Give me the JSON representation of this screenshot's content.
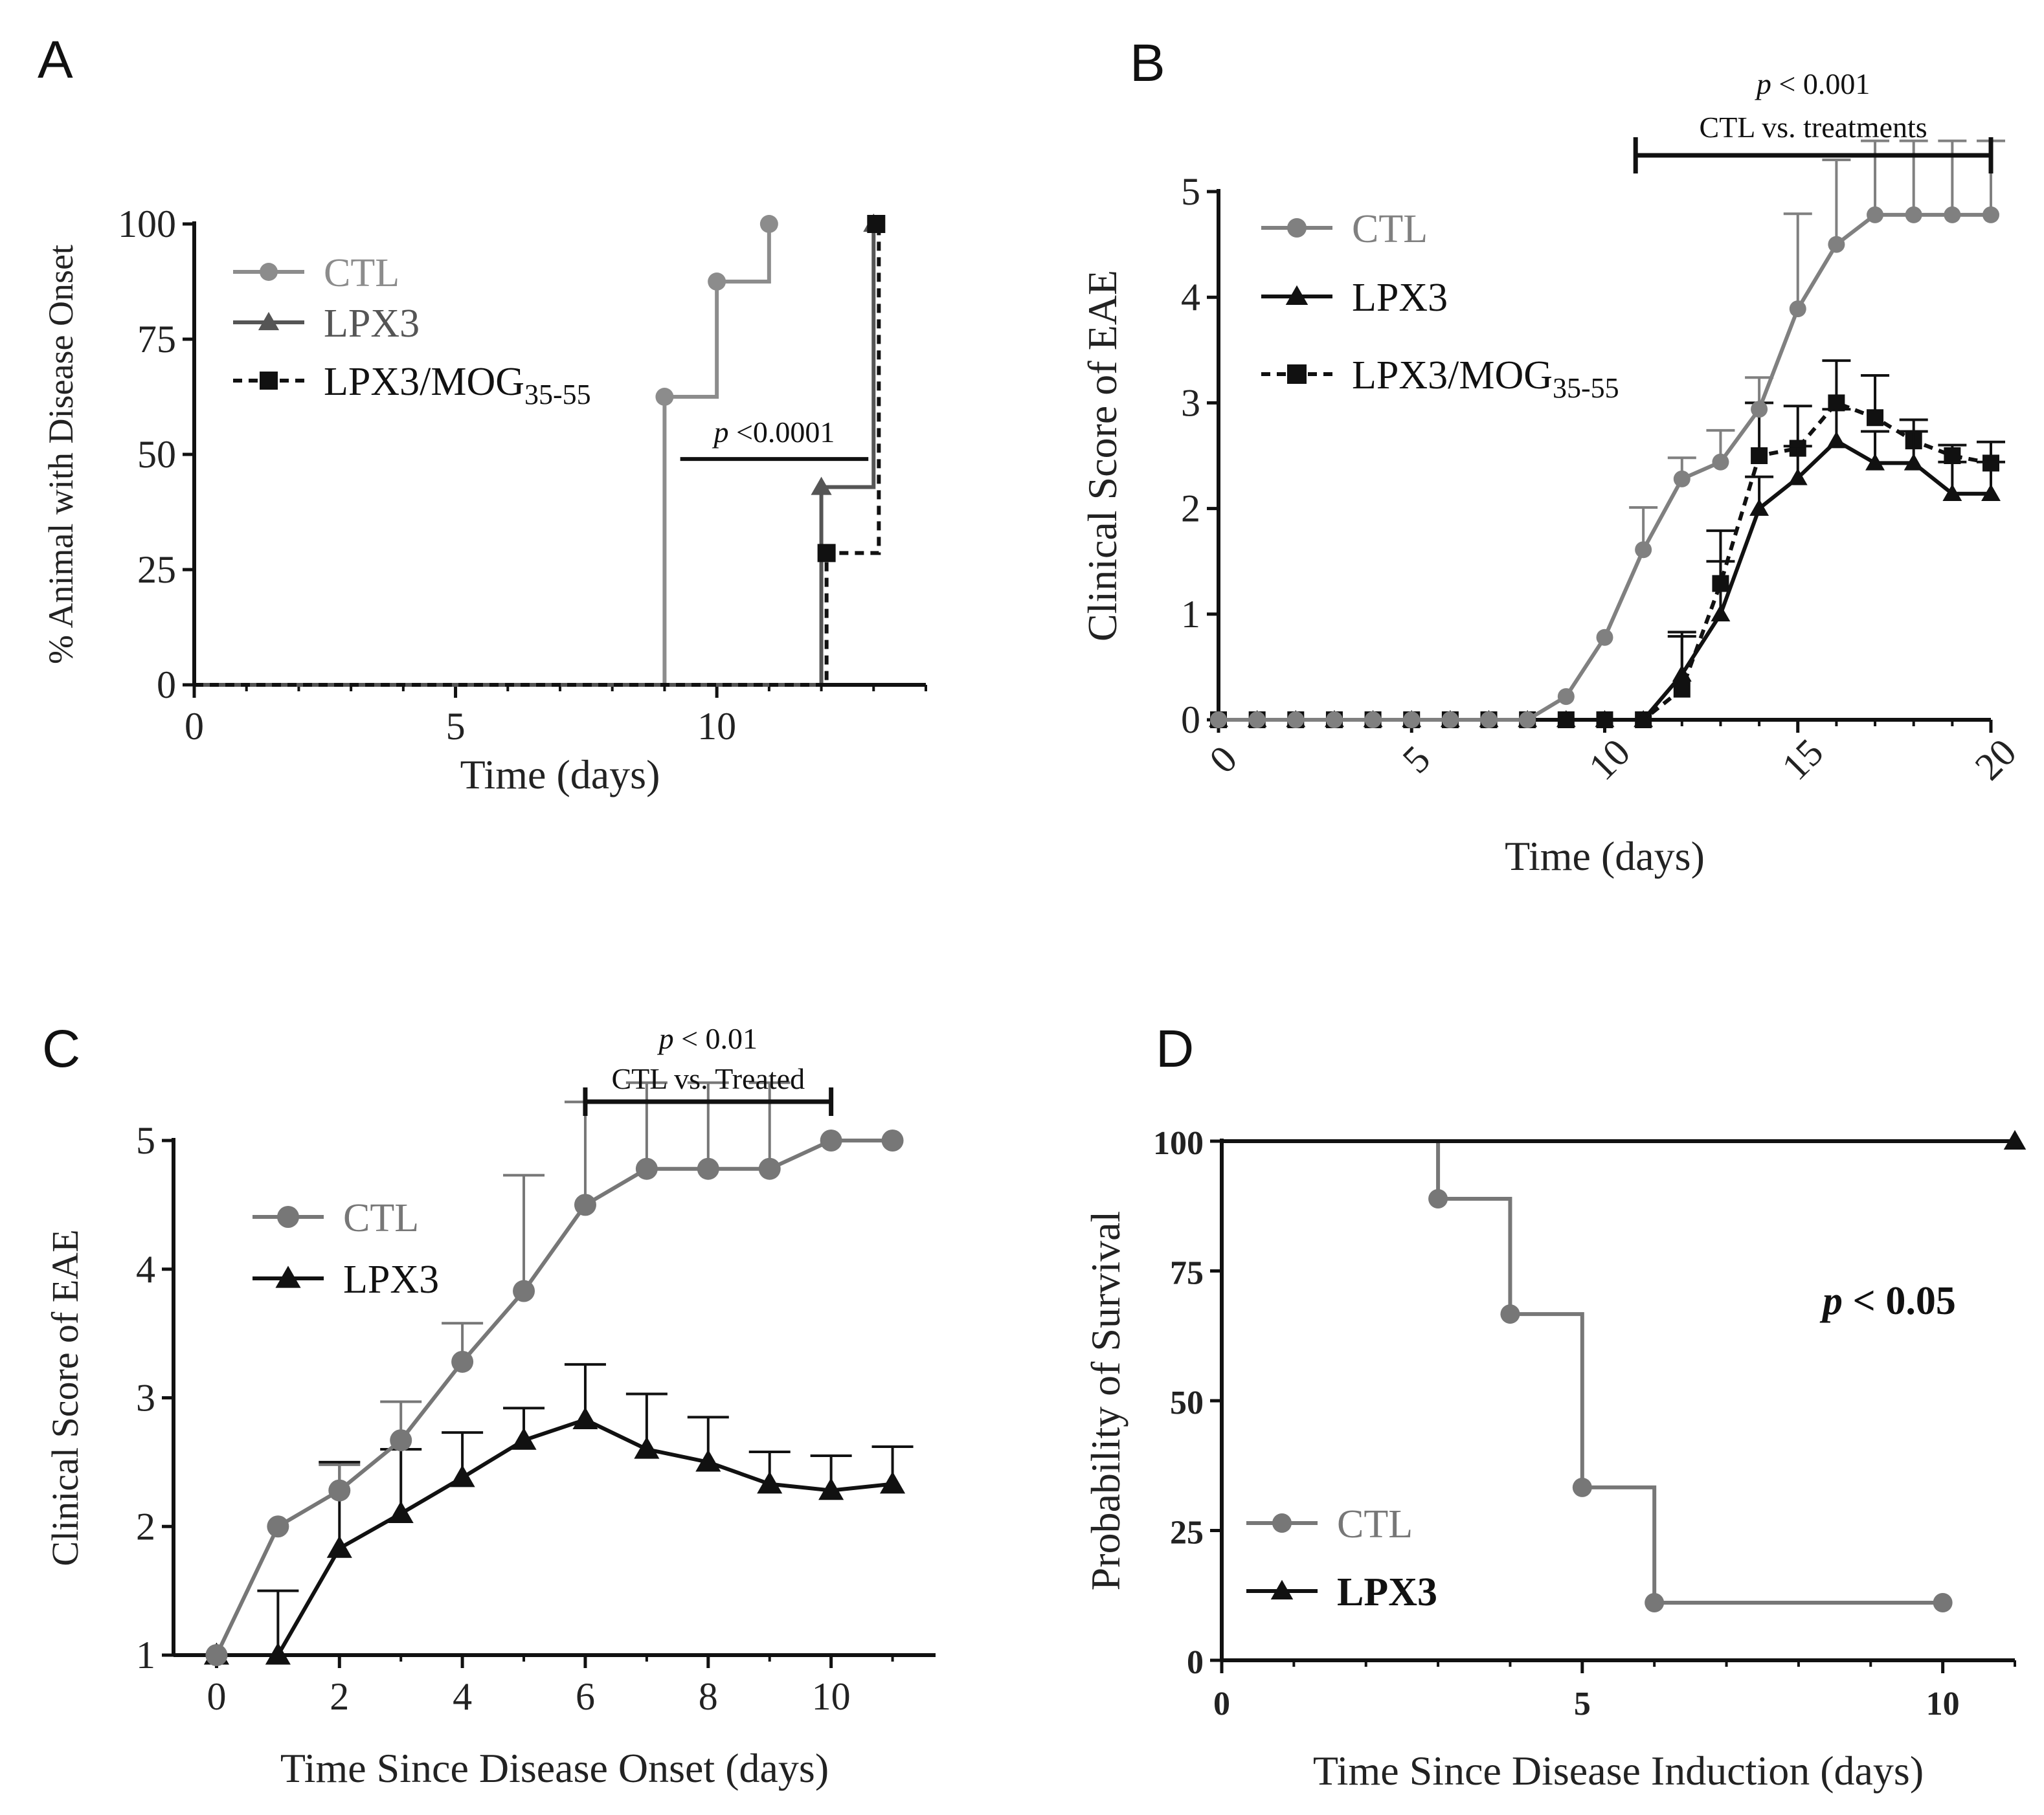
{
  "colors": {
    "ctl": "#7f7f7f",
    "lpx3_a": "#555555",
    "treated": "#111111"
  },
  "chart_data": [
    {
      "panel": "A",
      "type": "line",
      "step": true,
      "xlabel": "Time (days)",
      "ylabel": "% Animal with Disease Onset",
      "xlim": [
        0,
        14
      ],
      "ylim": [
        0,
        100
      ],
      "xticks": [
        "0",
        "5",
        "10"
      ],
      "yticks": [
        "0",
        "25",
        "50",
        "75",
        "100"
      ],
      "series": [
        {
          "name": "CTL",
          "color": "#8c8c8c",
          "marker": "circle",
          "dash": false,
          "points": [
            [
              0,
              0
            ],
            [
              9,
              0
            ],
            [
              9,
              62.5
            ],
            [
              10,
              62.5
            ],
            [
              10,
              87.5
            ],
            [
              11,
              87.5
            ],
            [
              11,
              100
            ]
          ],
          "markers": [
            [
              9,
              62.5
            ],
            [
              10,
              87.5
            ],
            [
              11,
              100
            ]
          ]
        },
        {
          "name": "LPX3",
          "color": "#555555",
          "marker": "triangle",
          "dash": false,
          "points": [
            [
              0,
              0
            ],
            [
              12,
              0
            ],
            [
              12,
              42.9
            ],
            [
              13,
              42.9
            ],
            [
              13,
              100
            ]
          ],
          "markers": [
            [
              12,
              42.9
            ],
            [
              13,
              100
            ]
          ]
        },
        {
          "name": "LPX3/MOG",
          "sub": "35-55",
          "color": "#111111",
          "marker": "square",
          "dash": true,
          "points": [
            [
              0,
              0
            ],
            [
              12.1,
              0
            ],
            [
              12.1,
              28.6
            ],
            [
              13.1,
              28.6
            ],
            [
              13.1,
              100
            ]
          ],
          "markers": [
            [
              12.1,
              28.6
            ],
            [
              13.05,
              100
            ]
          ]
        }
      ],
      "annotation": {
        "italic": "p",
        "rest": " <0.0001",
        "x1": 9.3,
        "x2": 12.9,
        "y": 49
      }
    },
    {
      "panel": "B",
      "type": "line",
      "xlabel": "Time (days)",
      "ylabel": "Clinical Score of EAE",
      "xlim": [
        0,
        20
      ],
      "ylim": [
        0,
        5
      ],
      "xticks": [
        "0",
        "5",
        "10",
        "15",
        "20"
      ],
      "yticks": [
        "0",
        "1",
        "2",
        "3",
        "4",
        "5"
      ],
      "series": [
        {
          "name": "CTL",
          "color": "#808080",
          "marker": "circle",
          "dash": false,
          "x": [
            0,
            1,
            2,
            3,
            4,
            5,
            6,
            7,
            8,
            9,
            10,
            11,
            12,
            13,
            14,
            15,
            16,
            17,
            18,
            19,
            20
          ],
          "y": [
            0,
            0,
            0,
            0,
            0,
            0,
            0,
            0,
            0,
            0.22,
            0.78,
            1.61,
            2.28,
            2.44,
            2.94,
            3.89,
            4.5,
            4.78,
            4.78,
            4.78,
            4.78
          ],
          "err": [
            0,
            0,
            0,
            0,
            0,
            0,
            0,
            0,
            0,
            0,
            0,
            0.4,
            0.2,
            0.3,
            0.3,
            0.9,
            0.8,
            0.7,
            0.7,
            0.7,
            0.7
          ]
        },
        {
          "name": "LPX3",
          "color": "#111111",
          "marker": "triangle",
          "dash": false,
          "x": [
            0,
            1,
            2,
            3,
            4,
            5,
            6,
            7,
            8,
            9,
            10,
            11,
            12,
            13,
            14,
            15,
            16,
            17,
            18,
            19,
            20
          ],
          "y": [
            0,
            0,
            0,
            0,
            0,
            0,
            0,
            0,
            0,
            0,
            0,
            0,
            0.43,
            1.0,
            2.0,
            2.29,
            2.64,
            2.43,
            2.43,
            2.14,
            2.14
          ],
          "err": [
            0,
            0,
            0,
            0,
            0,
            0,
            0,
            0,
            0,
            0,
            0,
            0,
            0.4,
            0.5,
            0.3,
            0.3,
            0.3,
            0.3,
            0.3,
            0.3,
            0.3
          ]
        },
        {
          "name": "LPX3/MOG",
          "sub": "35-55",
          "color": "#111111",
          "marker": "square",
          "dash": true,
          "x": [
            0,
            1,
            2,
            3,
            4,
            5,
            6,
            7,
            8,
            9,
            10,
            11,
            12,
            13,
            14,
            15,
            16,
            17,
            18,
            19,
            20
          ],
          "y": [
            0,
            0,
            0,
            0,
            0,
            0,
            0,
            0,
            0,
            0,
            0,
            0,
            0.29,
            1.29,
            2.5,
            2.57,
            3.0,
            2.86,
            2.64,
            2.5,
            2.43
          ],
          "err": [
            0,
            0,
            0,
            0,
            0,
            0,
            0,
            0,
            0,
            0,
            0,
            0,
            0.5,
            0.5,
            0.5,
            0.4,
            0.4,
            0.4,
            0.2,
            0.1,
            0.2
          ]
        }
      ],
      "annotation": {
        "italic": "p",
        "line1_rest": " < 0.001",
        "line2": "CTL vs. treatments",
        "x1": 10.8,
        "x2": 20
      }
    },
    {
      "panel": "C",
      "type": "line",
      "xlabel": "Time Since Disease Onset (days)",
      "ylabel": "Clinical Score of EAE",
      "xlim": [
        -0.7,
        11.7
      ],
      "ylim": [
        1,
        5
      ],
      "xticks": [
        "0",
        "2",
        "4",
        "6",
        "8",
        "10"
      ],
      "yticks": [
        "1",
        "2",
        "3",
        "4",
        "5"
      ],
      "series": [
        {
          "name": "CTL",
          "color": "#777777",
          "marker": "circle",
          "dash": false,
          "x": [
            0,
            1,
            2,
            3,
            4,
            5,
            6,
            7,
            8,
            9,
            10,
            11
          ],
          "y": [
            1.0,
            2.0,
            2.28,
            2.67,
            3.28,
            3.83,
            4.5,
            4.78,
            4.78,
            4.78,
            5.0,
            5.0
          ],
          "err": [
            0,
            0,
            0.2,
            0.3,
            0.3,
            0.9,
            0.8,
            0.67,
            0.67,
            0.67,
            0,
            0
          ]
        },
        {
          "name": "LPX3",
          "color": "#111111",
          "marker": "triangle",
          "dash": false,
          "x": [
            0,
            1,
            2,
            3,
            4,
            5,
            6,
            7,
            8,
            9,
            10,
            11
          ],
          "y": [
            1.0,
            1.0,
            1.83,
            2.1,
            2.38,
            2.67,
            2.83,
            2.6,
            2.5,
            2.33,
            2.28,
            2.33
          ],
          "err": [
            0,
            0.5,
            0.67,
            0.5,
            0.35,
            0.25,
            0.43,
            0.43,
            0.35,
            0.25,
            0.27,
            0.29
          ]
        }
      ],
      "annotation": {
        "italic": "p",
        "line1_rest": " < 0.01",
        "line2": "CTL vs. Treated",
        "x1": 6,
        "x2": 10
      }
    },
    {
      "panel": "D",
      "type": "line",
      "step": true,
      "xlabel": "Time Since Disease Induction (days)",
      "ylabel": "Probability of Survival",
      "xlim": [
        0,
        11
      ],
      "ylim": [
        0,
        100
      ],
      "xticks": [
        "0",
        "5",
        "10"
      ],
      "yticks": [
        "0",
        "25",
        "50",
        "75",
        "100"
      ],
      "series": [
        {
          "name": "CTL",
          "color": "#777777",
          "marker": "circle",
          "dash": false,
          "points": [
            [
              0,
              100
            ],
            [
              3,
              100
            ],
            [
              3,
              88.9
            ],
            [
              4,
              88.9
            ],
            [
              4,
              66.7
            ],
            [
              5,
              66.7
            ],
            [
              5,
              33.3
            ],
            [
              6,
              33.3
            ],
            [
              6,
              11.1
            ],
            [
              10,
              11.1
            ]
          ],
          "markers": [
            [
              3,
              88.9
            ],
            [
              4,
              66.7
            ],
            [
              5,
              33.3
            ],
            [
              6,
              11.1
            ],
            [
              10,
              11.1
            ]
          ]
        },
        {
          "name": "LPX3",
          "color": "#111111",
          "marker": "triangle",
          "dash": false,
          "points": [
            [
              0,
              100
            ],
            [
              11,
              100
            ]
          ],
          "markers": [
            [
              11,
              100
            ]
          ]
        }
      ],
      "annotation": {
        "italic": "p",
        "rest": " < 0.05"
      }
    }
  ]
}
